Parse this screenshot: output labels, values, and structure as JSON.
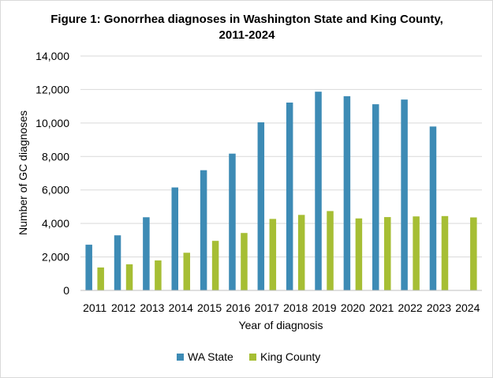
{
  "chart_data": {
    "type": "bar",
    "title_line1": "Figure 1: Gonorrhea diagnoses in Washington State and King County,",
    "title_line2": "2011-2024",
    "xlabel": "Year of diagnosis",
    "ylabel": "Number of GC diagnoses",
    "ylim": [
      0,
      14000
    ],
    "yticks": [
      0,
      2000,
      4000,
      6000,
      8000,
      10000,
      12000,
      14000
    ],
    "ytick_labels": [
      "0",
      "2,000",
      "4,000",
      "6,000",
      "8,000",
      "10,000",
      "12,000",
      "14,000"
    ],
    "grid": true,
    "legend_position": "bottom",
    "categories": [
      "2011",
      "2012",
      "2013",
      "2014",
      "2015",
      "2016",
      "2017",
      "2018",
      "2019",
      "2020",
      "2021",
      "2022",
      "2023",
      "2024"
    ],
    "series": [
      {
        "name": "WA State",
        "color": "#3d8bb5",
        "values": [
          2730,
          3290,
          4370,
          6150,
          7180,
          8170,
          10040,
          11220,
          11870,
          11600,
          11120,
          11400,
          9790,
          null
        ]
      },
      {
        "name": "King County",
        "color": "#a6be34",
        "values": [
          1370,
          1560,
          1790,
          2250,
          2960,
          3430,
          4270,
          4510,
          4740,
          4300,
          4380,
          4420,
          4440,
          4360
        ]
      }
    ]
  }
}
